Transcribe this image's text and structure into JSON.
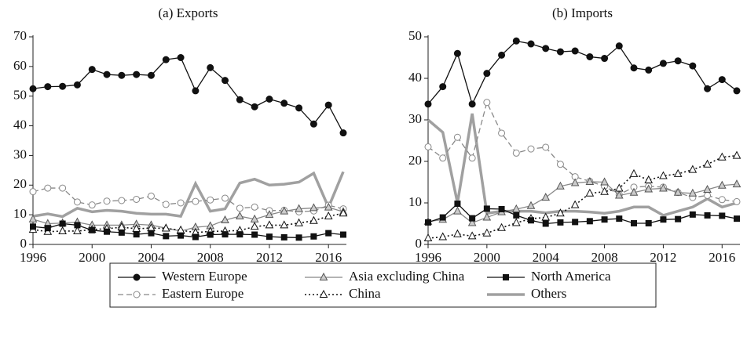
{
  "chart_data": [
    {
      "type": "line",
      "title": "(a) Exports",
      "x": [
        1996,
        1997,
        1998,
        1999,
        2000,
        2001,
        2002,
        2003,
        2004,
        2005,
        2006,
        2007,
        2008,
        2009,
        2010,
        2011,
        2012,
        2013,
        2014,
        2015,
        2016,
        2017
      ],
      "xlim": [
        1996,
        2017
      ],
      "xticks": [
        1996,
        2000,
        2004,
        2008,
        2012,
        2016
      ],
      "ylim": [
        0,
        70
      ],
      "yticks": [
        0,
        10,
        20,
        30,
        40,
        50,
        60,
        70
      ],
      "series": [
        {
          "name": "Western Europe",
          "color": "#111111",
          "marker": "circle",
          "dash": "solid",
          "width": 1.3,
          "values": [
            52.5,
            53.2,
            53.3,
            53.8,
            59,
            57.3,
            57,
            57.3,
            57,
            62.3,
            63,
            51.8,
            59.6,
            55.3,
            48.8,
            46.4,
            49,
            47.6,
            46,
            40.6,
            47,
            37.6
          ]
        },
        {
          "name": "Eastern Europe",
          "color": "#888888",
          "marker": "open-circle",
          "dash": "dashed",
          "width": 1.3,
          "values": [
            17.8,
            19,
            19,
            14.3,
            13.3,
            14.6,
            14.8,
            15.2,
            16.3,
            13.5,
            14,
            14.5,
            15,
            15.6,
            12.2,
            12.6,
            11.4,
            11.5,
            11,
            11.3,
            13.2,
            12
          ]
        },
        {
          "name": "Asia excluding China",
          "color": "#888888",
          "marker": "triangle",
          "dash": "solid",
          "width": 1.3,
          "values": [
            8.5,
            7,
            7.2,
            7.5,
            6.5,
            6.5,
            6.5,
            6.8,
            6.5,
            5.5,
            4.5,
            5.8,
            6.2,
            8.2,
            9.5,
            8.5,
            10,
            11.2,
            12,
            12.3,
            12.5,
            11
          ]
        },
        {
          "name": "China",
          "color": "#111111",
          "marker": "open-triangle",
          "dash": "dotted",
          "width": 1.6,
          "values": [
            5,
            4.3,
            4.5,
            4.5,
            5,
            5.3,
            5.8,
            5.3,
            5.5,
            5.4,
            4.8,
            4,
            4.4,
            4.5,
            4.7,
            6,
            6.5,
            6.5,
            7.2,
            8,
            9.5,
            10.5
          ]
        },
        {
          "name": "North America",
          "color": "#111111",
          "marker": "square",
          "dash": "solid",
          "width": 1.3,
          "values": [
            6,
            5.5,
            7,
            6.5,
            4.8,
            4.3,
            4,
            3.4,
            3.8,
            2.8,
            3,
            2.5,
            3.3,
            3.4,
            3.4,
            3.3,
            2.6,
            2.4,
            2.3,
            2.7,
            3.8,
            3.3
          ]
        },
        {
          "name": "Others",
          "color": "#a0a0a0",
          "marker": "none",
          "dash": "solid",
          "width": 3.5,
          "values": [
            9.5,
            10.3,
            9.4,
            12.2,
            11,
            11.5,
            11.2,
            10.5,
            10.2,
            10.2,
            9.5,
            20.5,
            11.2,
            12,
            20.7,
            22,
            20,
            20.3,
            21,
            24,
            12.5,
            24.5
          ]
        }
      ]
    },
    {
      "type": "line",
      "title": "(b) Imports",
      "x": [
        1996,
        1997,
        1998,
        1999,
        2000,
        2001,
        2002,
        2003,
        2004,
        2005,
        2006,
        2007,
        2008,
        2009,
        2010,
        2011,
        2012,
        2013,
        2014,
        2015,
        2016,
        2017
      ],
      "xlim": [
        1996,
        2017
      ],
      "xticks": [
        1996,
        2000,
        2004,
        2008,
        2012,
        2016
      ],
      "ylim": [
        0,
        50
      ],
      "yticks": [
        0,
        10,
        20,
        30,
        40,
        50
      ],
      "series": [
        {
          "name": "Western Europe",
          "color": "#111111",
          "marker": "circle",
          "dash": "solid",
          "width": 1.3,
          "values": [
            33.8,
            38,
            46,
            33.8,
            41.2,
            45.6,
            49,
            48.3,
            47.2,
            46.4,
            46.6,
            45.2,
            44.8,
            47.8,
            42.5,
            42,
            43.6,
            44.2,
            43,
            37.5,
            39.7,
            37
          ]
        },
        {
          "name": "Eastern Europe",
          "color": "#888888",
          "marker": "open-circle",
          "dash": "dashed",
          "width": 1.3,
          "values": [
            23.5,
            20.8,
            25.8,
            20.8,
            34.2,
            26.8,
            22,
            23,
            23.4,
            19.3,
            16.3,
            15.2,
            14,
            12,
            13.8,
            14,
            13.8,
            12.5,
            11.3,
            11.8,
            10.8,
            10.3
          ]
        },
        {
          "name": "Asia excluding China",
          "color": "#888888",
          "marker": "triangle",
          "dash": "solid",
          "width": 1.3,
          "values": [
            5.5,
            6,
            8,
            5.2,
            6.5,
            7.8,
            8.5,
            9.3,
            11.3,
            14,
            14.8,
            15.1,
            15,
            11.8,
            12.5,
            13.3,
            13.5,
            12.5,
            12.3,
            13.2,
            14.2,
            14.5
          ]
        },
        {
          "name": "China",
          "color": "#111111",
          "marker": "open-triangle",
          "dash": "dotted",
          "width": 1.6,
          "values": [
            1.5,
            1.8,
            2.5,
            2,
            2.7,
            4,
            5.2,
            6.2,
            6.5,
            7.5,
            9.5,
            12.3,
            12.7,
            13.5,
            17,
            15.5,
            16.5,
            17,
            18,
            19.3,
            21,
            21.4
          ]
        },
        {
          "name": "North America",
          "color": "#111111",
          "marker": "square",
          "dash": "solid",
          "width": 1.3,
          "values": [
            5.3,
            6.5,
            9.8,
            6.3,
            8.6,
            8.5,
            7,
            5.8,
            5,
            5.3,
            5.4,
            5.6,
            6,
            6.2,
            5.1,
            5.1,
            6,
            6.1,
            7.2,
            7,
            6.9,
            6.2
          ]
        },
        {
          "name": "Others",
          "color": "#a0a0a0",
          "marker": "none",
          "dash": "solid",
          "width": 3.5,
          "values": [
            30,
            27,
            10,
            31.5,
            7.5,
            8,
            8,
            8,
            7.6,
            8,
            8,
            7.8,
            7.5,
            8,
            9,
            9,
            7,
            8,
            9,
            11,
            9,
            10
          ]
        }
      ]
    }
  ]
}
